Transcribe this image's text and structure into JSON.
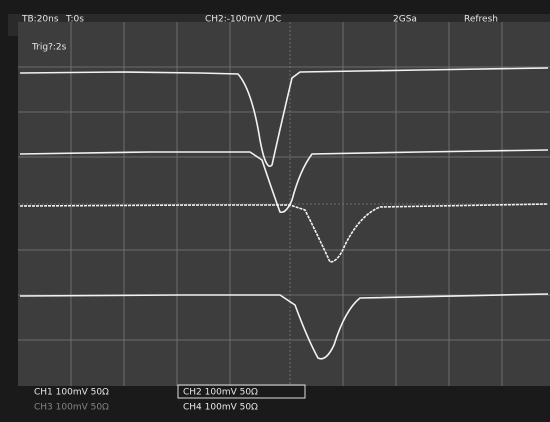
{
  "status_bar": {
    "timebase": "TB:20ns",
    "trigger_time": "T:0s",
    "channel_setting": "CH2:-100mV /DC",
    "sample_rate": "2GSa",
    "mode": "Refresh"
  },
  "trigger_label": "Trig?:2s",
  "channels": [
    "CH1 100mV 50Ω",
    "CH2 100mV 50Ω",
    "CH3 100mV 50Ω",
    "CH4 100mV 50Ω"
  ]
}
